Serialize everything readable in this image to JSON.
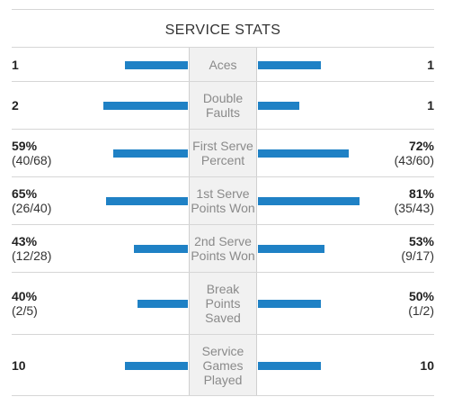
{
  "title": "SERVICE STATS",
  "colors": {
    "bar": "#1f81c5",
    "label": "#8a8a8a",
    "center_bg": "#f1f1f1"
  },
  "rows": [
    {
      "label": "Aces",
      "left_value": "1",
      "left_detail": "",
      "right_value": "1",
      "right_detail": "",
      "left_fraction": 0.5,
      "right_fraction": 0.5
    },
    {
      "label": "Double Faults",
      "left_value": "2",
      "left_detail": "",
      "right_value": "1",
      "right_detail": "",
      "left_fraction": 0.67,
      "right_fraction": 0.33
    },
    {
      "label": "First Serve Percent",
      "left_value": "59%",
      "left_detail": "(40/68)",
      "right_value": "72%",
      "right_detail": "(43/60)",
      "left_fraction": 0.59,
      "right_fraction": 0.72
    },
    {
      "label": "1st Serve Points Won",
      "left_value": "65%",
      "left_detail": "(26/40)",
      "right_value": "81%",
      "right_detail": "(35/43)",
      "left_fraction": 0.65,
      "right_fraction": 0.81
    },
    {
      "label": "2nd Serve Points Won",
      "left_value": "43%",
      "left_detail": "(12/28)",
      "right_value": "53%",
      "right_detail": "(9/17)",
      "left_fraction": 0.43,
      "right_fraction": 0.53
    },
    {
      "label": "Break Points Saved",
      "left_value": "40%",
      "left_detail": "(2/5)",
      "right_value": "50%",
      "right_detail": "(1/2)",
      "left_fraction": 0.4,
      "right_fraction": 0.5
    },
    {
      "label": "Service Games Played",
      "left_value": "10",
      "left_detail": "",
      "right_value": "10",
      "right_detail": "",
      "left_fraction": 0.5,
      "right_fraction": 0.5
    }
  ]
}
